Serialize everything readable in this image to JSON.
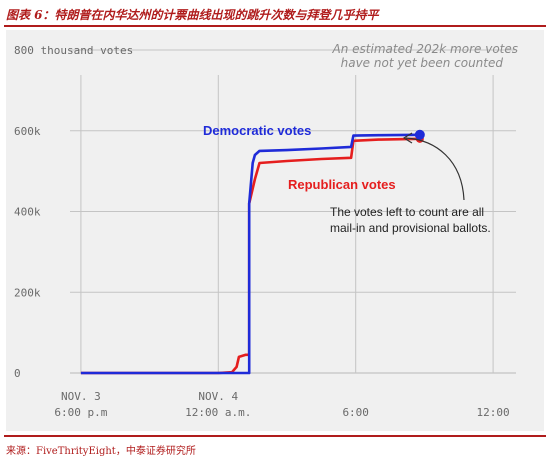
{
  "figure": {
    "title": "图表 6：特朗普在内华达州的计票曲线出现的跳升次数与拜登几乎持平",
    "source": "来源：FiveThrityEight，中泰证券研究所"
  },
  "colors": {
    "democratic": "#1f2bd8",
    "republican": "#e51e1e",
    "grid": "#c4c4c4",
    "panel_bg": "#f0f0f0",
    "axis_text": "#6a6a6a",
    "accent": "#b01c1c"
  },
  "chart_data": {
    "type": "line",
    "y_unit_label": "800 thousand votes",
    "ylim": [
      0,
      800
    ],
    "yticks": [
      {
        "value": 800,
        "label": "800 thousand votes"
      },
      {
        "value": 600,
        "label": "600k"
      },
      {
        "value": 400,
        "label": "400k"
      },
      {
        "value": 200,
        "label": "200k"
      },
      {
        "value": 0,
        "label": "0"
      }
    ],
    "x_unit": "hours after Nov. 3 6:00 p.m.",
    "xlim": [
      -1,
      19
    ],
    "xticks": [
      {
        "value": 0,
        "line1": "NOV. 3",
        "line2": "6:00 p.m"
      },
      {
        "value": 6,
        "line1": "NOV. 4",
        "line2": "12:00 a.m."
      },
      {
        "value": 12,
        "line1": "",
        "line2": "6:00"
      },
      {
        "value": 18,
        "line1": "",
        "line2": "12:00"
      }
    ],
    "grid": true,
    "series": [
      {
        "name": "Democratic votes",
        "color_key": "democratic",
        "points": [
          [
            0,
            0
          ],
          [
            6.0,
            0
          ],
          [
            7.1,
            0
          ],
          [
            7.35,
            0
          ],
          [
            7.35,
            420
          ],
          [
            7.5,
            520
          ],
          [
            7.6,
            540
          ],
          [
            7.8,
            550
          ],
          [
            9,
            552
          ],
          [
            10.5,
            556
          ],
          [
            11.8,
            560
          ],
          [
            11.9,
            588
          ],
          [
            13,
            589
          ],
          [
            14.8,
            590
          ]
        ],
        "end_marker": true
      },
      {
        "name": "Republican votes",
        "color_key": "republican",
        "points": [
          [
            0,
            0
          ],
          [
            6.0,
            0
          ],
          [
            6.6,
            2
          ],
          [
            6.8,
            15
          ],
          [
            6.9,
            40
          ],
          [
            7.2,
            45
          ],
          [
            7.35,
            45
          ],
          [
            7.35,
            420
          ],
          [
            7.6,
            480
          ],
          [
            7.7,
            500
          ],
          [
            7.8,
            520
          ],
          [
            9,
            525
          ],
          [
            10.5,
            530
          ],
          [
            11.8,
            533
          ],
          [
            11.9,
            575
          ],
          [
            13,
            578
          ],
          [
            14.8,
            580
          ]
        ],
        "end_marker": true
      }
    ],
    "annotations": [
      {
        "id": "note-top",
        "lines": [
          "An estimated 202k more votes",
          "have not yet been counted"
        ]
      },
      {
        "id": "note-right",
        "lines": [
          "The votes left to count are all",
          "mail-in and provisional ballots."
        ]
      }
    ]
  }
}
